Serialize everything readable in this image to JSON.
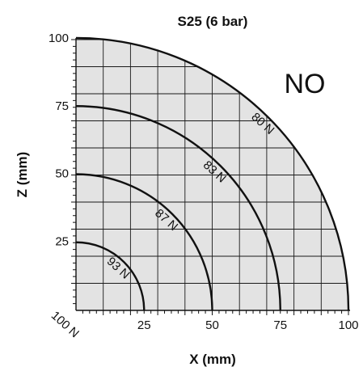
{
  "chart_data": {
    "type": "line",
    "title": "S25 (6 bar)",
    "xlabel": "X (mm)",
    "ylabel": "Z (mm)",
    "xlim": [
      0,
      100
    ],
    "ylim": [
      0,
      100
    ],
    "x_ticks": [
      25,
      50,
      75,
      100
    ],
    "y_ticks": [
      25,
      50,
      75,
      100
    ],
    "grid": true,
    "region_label": "NO",
    "series": [
      {
        "label": "100 N",
        "radius": 0
      },
      {
        "label": "93 N",
        "radius": 25
      },
      {
        "label": "87 N",
        "radius": 50
      },
      {
        "label": "83 N",
        "radius": 75
      },
      {
        "label": "80 N",
        "radius": 100
      }
    ]
  }
}
